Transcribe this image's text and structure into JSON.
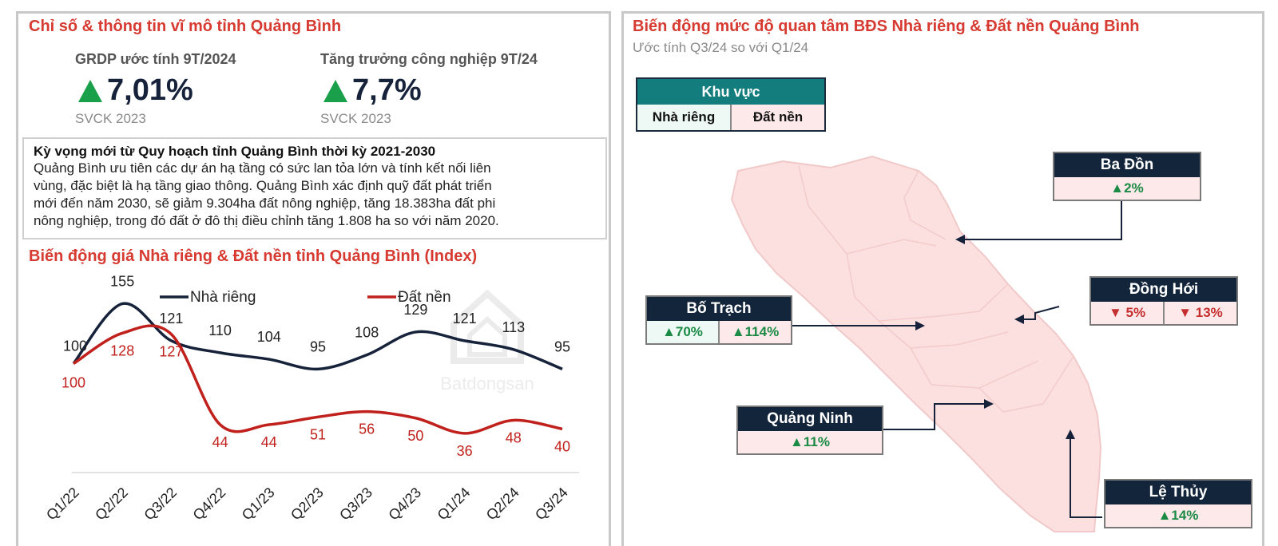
{
  "left": {
    "title": "Chỉ số & thông tin vĩ mô tỉnh Quảng Bình",
    "kpis": [
      {
        "label": "GRDP ước tính 9T/2024",
        "value": "7,01%",
        "sub": "SVCK 2023"
      },
      {
        "label": "Tăng trưởng công nghiệp 9T/24",
        "value": "7,7%",
        "sub": "SVCK 2023"
      }
    ],
    "note": {
      "title": "Kỳ vọng mới từ Quy hoạch tỉnh Quảng Bình thời kỳ 2021-2030",
      "lines": [
        "Quảng Bình ưu tiên các dự án hạ tầng có sức lan tỏa lớn và tính kết nối liên",
        "vùng, đặc biệt là hạ tầng giao thông. Quảng Bình xác định quỹ đất phát triển",
        "mới đến năm 2030, sẽ giảm 9.304ha đất nông nghiệp, tăng 18.383ha đất phi",
        "nông nghiệp, trong đó đất ở đô thị điều chỉnh tăng 1.808 ha so với năm 2020."
      ]
    },
    "chart_title": "Biến động giá Nhà riêng & Đất nền tỉnh Quảng Bình (Index)",
    "watermark": "Batdongsan"
  },
  "chart_data": {
    "type": "line",
    "categories": [
      "Q1/22",
      "Q2/22",
      "Q3/22",
      "Q4/22",
      "Q1/23",
      "Q2/23",
      "Q3/23",
      "Q4/23",
      "Q1/24",
      "Q2/24",
      "Q3/24"
    ],
    "series": [
      {
        "name": "Nhà riêng",
        "color": "#16213a",
        "values": [
          100,
          155,
          121,
          110,
          104,
          95,
          108,
          129,
          121,
          113,
          95
        ]
      },
      {
        "name": "Đất nền",
        "color": "#c0211c",
        "values": [
          100,
          128,
          127,
          44,
          44,
          51,
          56,
          50,
          36,
          48,
          40
        ]
      }
    ],
    "ylim": [
      0,
      170
    ],
    "legend": "top",
    "grid": false
  },
  "right": {
    "title": "Biến động mức độ quan tâm BĐS Nhà riêng & Đất nền Quảng Bình",
    "subtitle": "Ước tính Q3/24 so với Q1/24",
    "legend": {
      "header": "Khu vực",
      "col1": "Nhà riêng",
      "col2": "Đất nền"
    },
    "regions": {
      "ba_don": {
        "name": "Ba Đồn",
        "v1": "▲2%"
      },
      "dong_hoi": {
        "name": "Đồng Hới",
        "v1": "▼ 5%",
        "v2": "▼ 13%"
      },
      "bo_trach": {
        "name": "Bố Trạch",
        "v1": "▲70%",
        "v2": "▲114%"
      },
      "quang_ninh": {
        "name": "Quảng Ninh",
        "v1": "▲11%"
      },
      "le_thuy": {
        "name": "Lệ Thủy",
        "v1": "▲14%"
      }
    },
    "colors": {
      "map_fill": "#fbe0df",
      "header_dark": "#13253a",
      "header_teal": "#137d7d",
      "accent_red": "#d63a31",
      "up_green": "#1aa04a"
    }
  }
}
